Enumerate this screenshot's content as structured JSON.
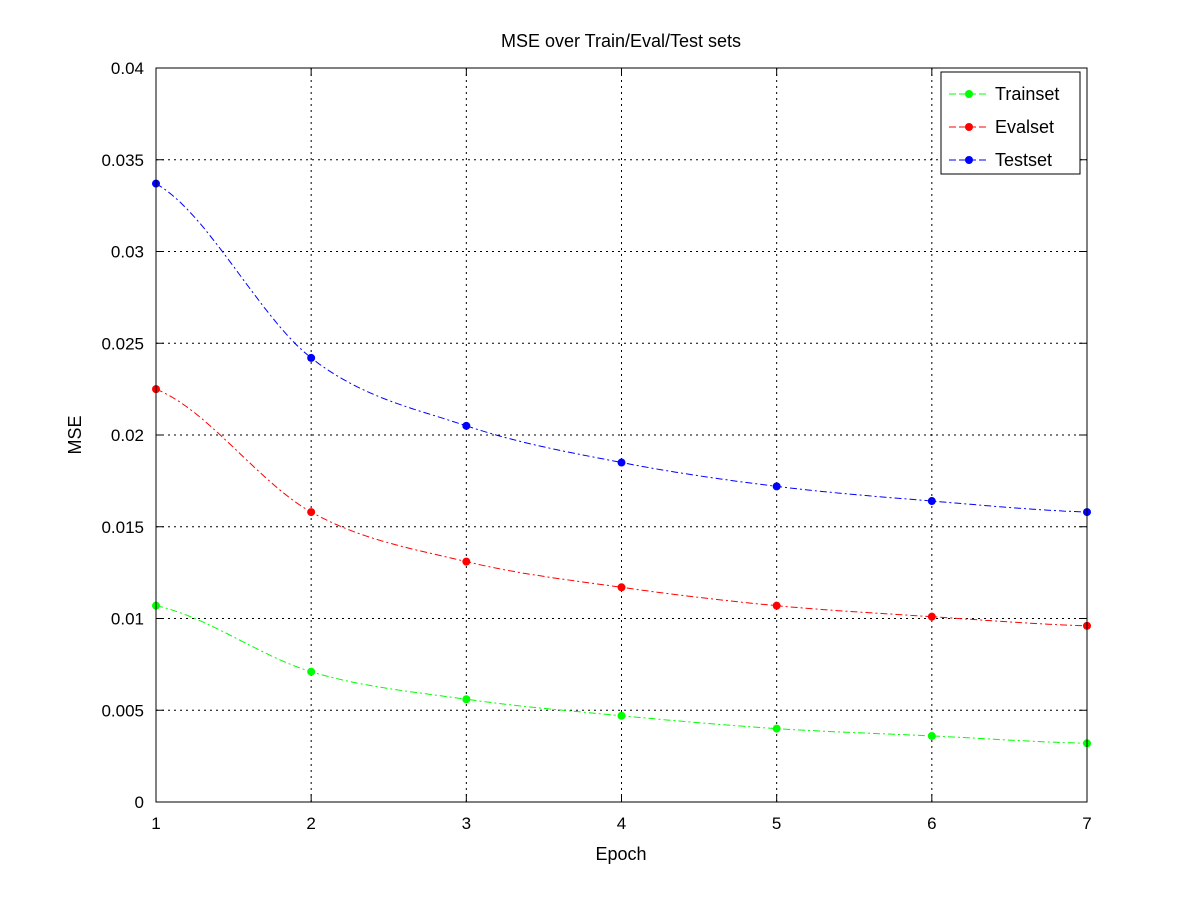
{
  "chart_data": {
    "type": "line",
    "title": "MSE over Train/Eval/Test sets",
    "xlabel": "Epoch",
    "ylabel": "MSE",
    "x": [
      1,
      2,
      3,
      4,
      5,
      6,
      7
    ],
    "xlim": [
      1,
      7
    ],
    "ylim": [
      0,
      0.04
    ],
    "xticks": [
      "1",
      "2",
      "3",
      "4",
      "5",
      "6",
      "7"
    ],
    "yticks": [
      "0",
      "0.005",
      "0.01",
      "0.015",
      "0.02",
      "0.025",
      "0.03",
      "0.035",
      "0.04"
    ],
    "grid": true,
    "legend_position": "top-right",
    "series": [
      {
        "name": "Trainset",
        "color": "#00ff00",
        "values": [
          0.0107,
          0.0071,
          0.0056,
          0.0047,
          0.004,
          0.0036,
          0.0032
        ]
      },
      {
        "name": "Evalset",
        "color": "#ff0000",
        "values": [
          0.0225,
          0.0158,
          0.0131,
          0.0117,
          0.0107,
          0.0101,
          0.0096
        ]
      },
      {
        "name": "Testset",
        "color": "#0000ff",
        "values": [
          0.0337,
          0.0242,
          0.0205,
          0.0185,
          0.0172,
          0.0164,
          0.0158
        ]
      }
    ]
  }
}
